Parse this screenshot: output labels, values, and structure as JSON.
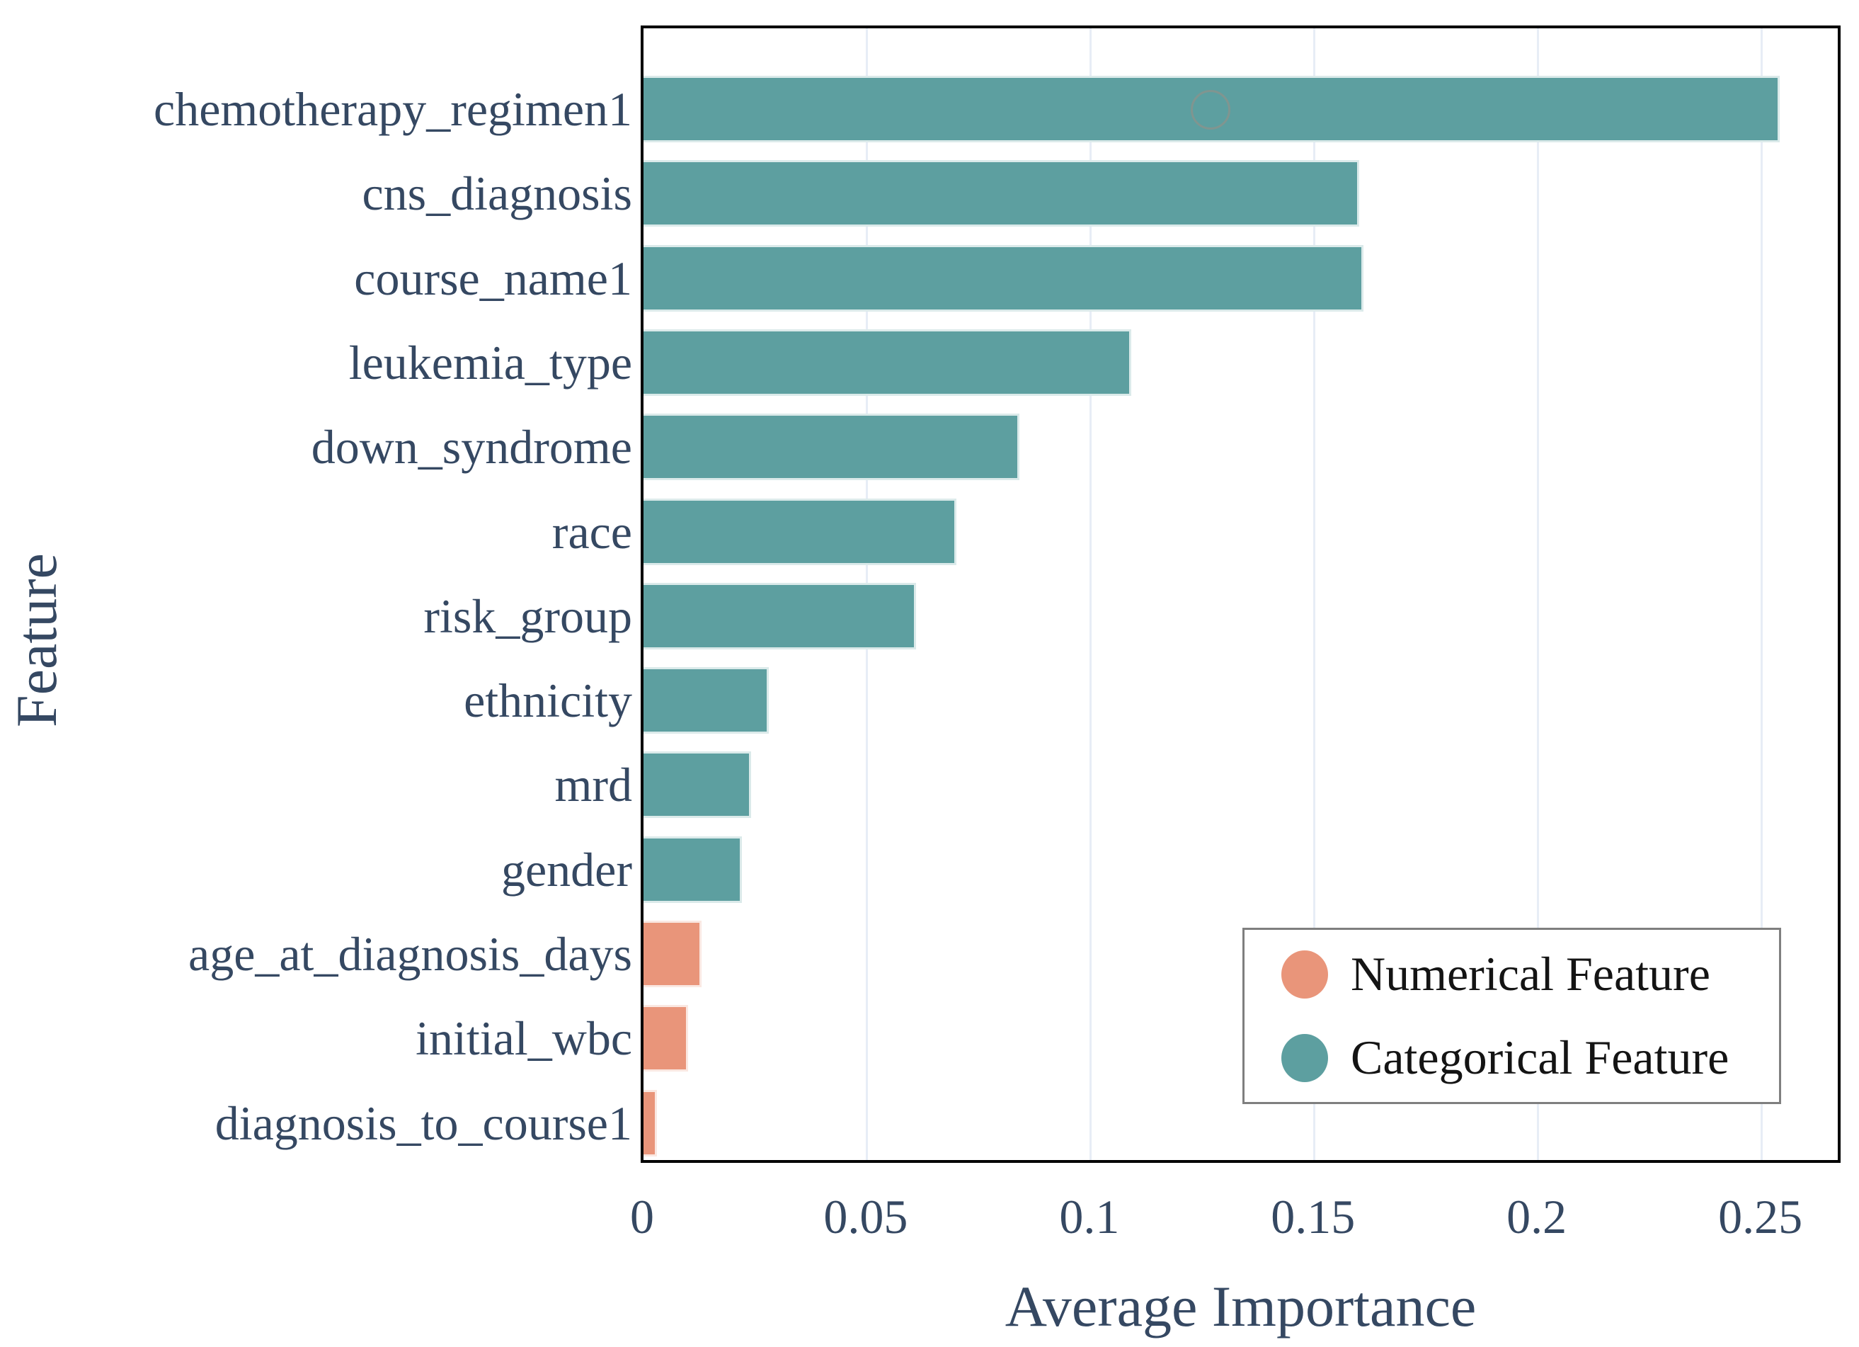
{
  "chart_data": {
    "type": "bar",
    "orientation": "horizontal",
    "title": "",
    "xlabel": "Average Importance",
    "ylabel": "Feature",
    "categories": [
      "chemotherapy_regimen1",
      "cns_diagnosis",
      "course_name1",
      "leukemia_type",
      "down_syndrome",
      "race",
      "risk_group",
      "ethnicity",
      "mrd",
      "gender",
      "age_at_diagnosis_days",
      "initial_wbc",
      "diagnosis_to_course1"
    ],
    "values": [
      0.254,
      0.16,
      0.161,
      0.109,
      0.084,
      0.07,
      0.061,
      0.028,
      0.024,
      0.022,
      0.013,
      0.01,
      0.003
    ],
    "feature_types": [
      "categorical",
      "categorical",
      "categorical",
      "categorical",
      "categorical",
      "categorical",
      "categorical",
      "categorical",
      "categorical",
      "categorical",
      "numerical",
      "numerical",
      "numerical"
    ],
    "series_colors": {
      "categorical": "#5d9fa0",
      "numerical": "#e9957a"
    },
    "xlim": [
      0,
      0.267
    ],
    "x_ticks": [
      0,
      0.05,
      0.1,
      0.15,
      0.2,
      0.25
    ],
    "x_tick_labels": [
      "0",
      "0.05",
      "0.1",
      "0.15",
      "0.2",
      "0.25"
    ],
    "grid": "vertical light gridlines at x ticks",
    "legend_position": "lower right"
  },
  "legend": {
    "entries": [
      {
        "label": "Numerical Feature",
        "color": "#e9957a"
      },
      {
        "label": "Categorical Feature",
        "color": "#5d9fa0"
      }
    ]
  },
  "style": {
    "background": "#ffffff",
    "tick_text_color": "#354862",
    "legend_text_color": "#141414",
    "grid_color": "#e7edf6",
    "plot_border_color": "#000000",
    "legend_border_color": "#7f7f7f",
    "bar_teal": "#5d9fa0",
    "bar_salmon": "#e9957a"
  }
}
